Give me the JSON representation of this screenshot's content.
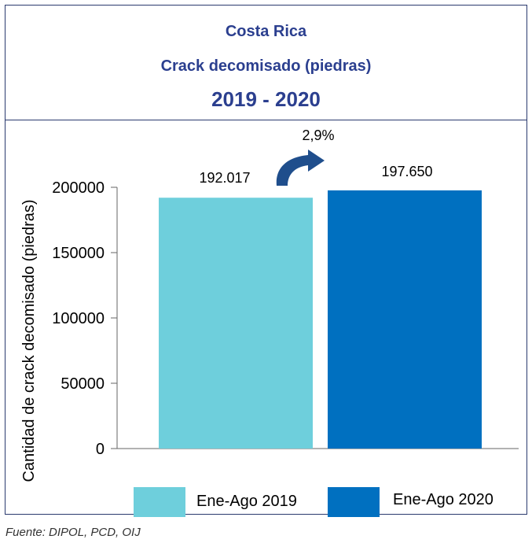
{
  "header": {
    "country": "Costa Rica",
    "subject": "Crack decomisado (piedras)",
    "period": "2019 - 2020"
  },
  "chart_data": {
    "type": "bar",
    "title": "Crack decomisado (piedras)",
    "ylabel": "Cantidad de crack decomisado (piedras)",
    "xlabel": "",
    "ylim": [
      0,
      200000
    ],
    "yticks": [
      0,
      50000,
      100000,
      150000,
      200000
    ],
    "categories": [
      "Ene-Ago 2019",
      "Ene-Ago 2020"
    ],
    "values": [
      192017,
      197650
    ],
    "value_labels": [
      "192.017",
      "197.650"
    ],
    "colors": [
      "#6ecfdc",
      "#0070c0"
    ],
    "change_label": "2,9%",
    "arrow_color": "#1f4e8c",
    "legend": [
      "Ene-Ago 2019",
      "Ene-Ago 2020"
    ],
    "legend_position": "bottom",
    "grid": false
  },
  "source": "Fuente: DIPOL, PCD, OIJ"
}
